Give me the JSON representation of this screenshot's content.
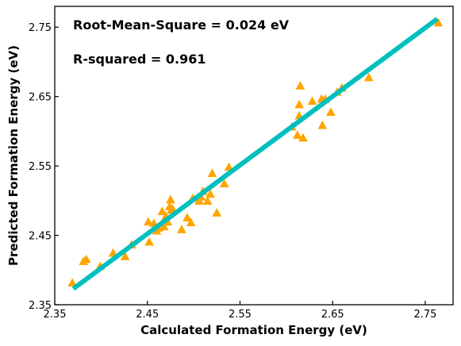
{
  "chart_data": {
    "type": "scatter",
    "title": "",
    "xlabel": "Calculated Formation Energy (eV)",
    "ylabel": "Predicted Formation Energy (eV)",
    "xlim": [
      2.35,
      2.78
    ],
    "ylim": [
      2.35,
      2.78
    ],
    "xticks": [
      "2.35",
      "2.45",
      "2.55",
      "2.65",
      "2.75"
    ],
    "yticks": [
      "2.35",
      "2.45",
      "2.55",
      "2.65",
      "2.75"
    ],
    "annotations": [
      "Root-Mean-Square = 0.024 eV",
      "R-squared = 0.961"
    ],
    "grid": false,
    "colors": {
      "points": "#FFA500",
      "fit_line": "#00BFBF"
    },
    "fit_line": {
      "x": [
        2.37,
        2.763
      ],
      "y": [
        2.373,
        2.762
      ]
    },
    "series": [
      {
        "marker": "triangle",
        "x": [
          2.369,
          2.381,
          2.384,
          2.399,
          2.413,
          2.426,
          2.433,
          2.452,
          2.451,
          2.457,
          2.46,
          2.462,
          2.466,
          2.468,
          2.47,
          2.472,
          2.474,
          2.476,
          2.475,
          2.477,
          2.487,
          2.493,
          2.497,
          2.499,
          2.506,
          2.508,
          2.51,
          2.515,
          2.518,
          2.52,
          2.525,
          2.533,
          2.538,
          2.606,
          2.612,
          2.614,
          2.614,
          2.615,
          2.618,
          2.628,
          2.638,
          2.639,
          2.642,
          2.648,
          2.655,
          2.66,
          2.689,
          2.764
        ],
        "y": [
          2.381,
          2.412,
          2.415,
          2.405,
          2.424,
          2.419,
          2.436,
          2.44,
          2.469,
          2.467,
          2.456,
          2.46,
          2.484,
          2.462,
          2.477,
          2.469,
          2.491,
          2.486,
          2.501,
          2.488,
          2.458,
          2.475,
          2.468,
          2.503,
          2.499,
          2.505,
          2.513,
          2.499,
          2.509,
          2.539,
          2.482,
          2.524,
          2.548,
          2.606,
          2.594,
          2.622,
          2.638,
          2.665,
          2.59,
          2.643,
          2.646,
          2.608,
          2.646,
          2.627,
          2.656,
          2.662,
          2.677,
          2.756
        ]
      }
    ]
  }
}
